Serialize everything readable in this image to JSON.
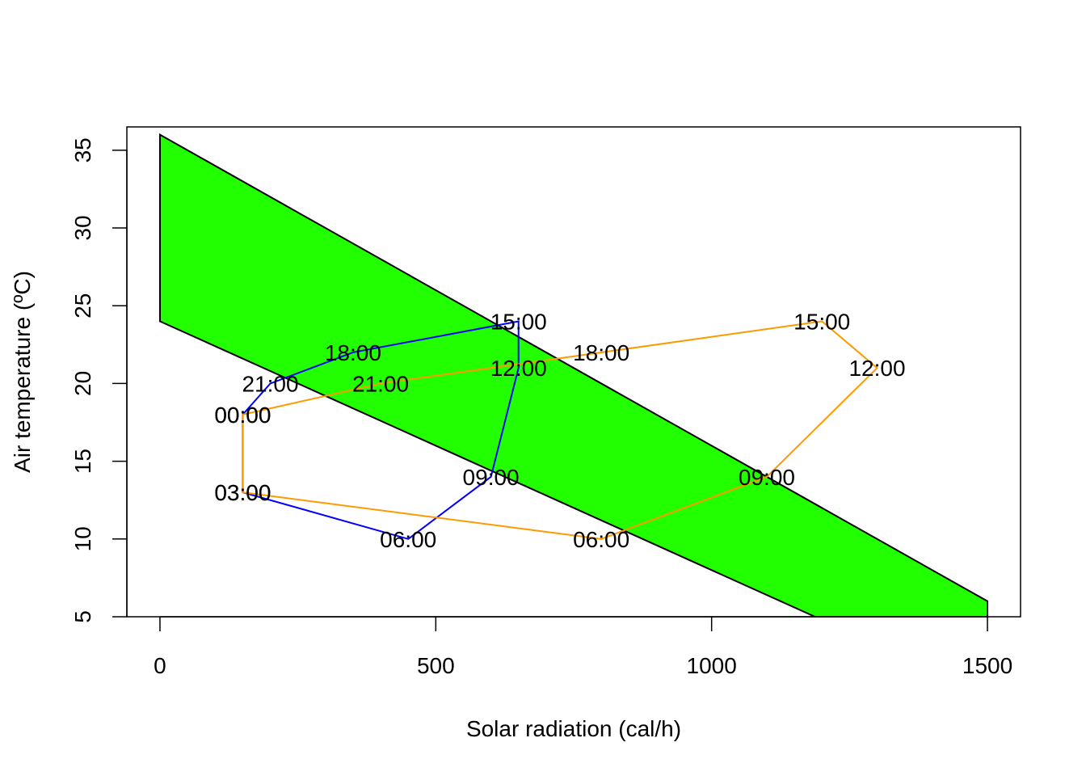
{
  "chart_data": {
    "type": "line",
    "title": "",
    "xlabel": "Solar radiation (cal/h)",
    "ylabel": "Air temperature (ºC)",
    "xlim": [
      -60,
      1560
    ],
    "ylim": [
      5,
      36.5
    ],
    "xticks": [
      "0",
      "500",
      "1000",
      "1500"
    ],
    "yticks": [
      "5",
      "10",
      "15",
      "20",
      "25",
      "30",
      "35"
    ],
    "band": {
      "fill": "#22ff00",
      "stroke": "#000000",
      "polygon": [
        [
          0,
          36
        ],
        [
          1500,
          6
        ],
        [
          1500,
          0
        ],
        [
          0,
          24
        ]
      ]
    },
    "series": [
      {
        "name": "blue",
        "color": "#0000ff",
        "points": [
          {
            "x": 150,
            "y": 18,
            "label": "00:00"
          },
          {
            "x": 150,
            "y": 13,
            "label": "03:00"
          },
          {
            "x": 450,
            "y": 10,
            "label": "06:00"
          },
          {
            "x": 600,
            "y": 14,
            "label": "09:00"
          },
          {
            "x": 650,
            "y": 21,
            "label": "12:00"
          },
          {
            "x": 650,
            "y": 24,
            "label": "15:00"
          },
          {
            "x": 350,
            "y": 22,
            "label": "18:00"
          },
          {
            "x": 200,
            "y": 20,
            "label": "21:00"
          },
          {
            "x": 150,
            "y": 18,
            "label": "00:00"
          }
        ]
      },
      {
        "name": "orange",
        "color": "#ff9900",
        "points": [
          {
            "x": 150,
            "y": 18,
            "label": "00:00"
          },
          {
            "x": 150,
            "y": 13,
            "label": "03:00"
          },
          {
            "x": 800,
            "y": 10,
            "label": "06:00"
          },
          {
            "x": 1100,
            "y": 14,
            "label": "09:00"
          },
          {
            "x": 1300,
            "y": 21,
            "label": "12:00"
          },
          {
            "x": 1200,
            "y": 24,
            "label": "15:00"
          },
          {
            "x": 800,
            "y": 22,
            "label": "18:00"
          },
          {
            "x": 400,
            "y": 20,
            "label": "21:00"
          },
          {
            "x": 150,
            "y": 18,
            "label": "00:00"
          }
        ]
      }
    ]
  }
}
